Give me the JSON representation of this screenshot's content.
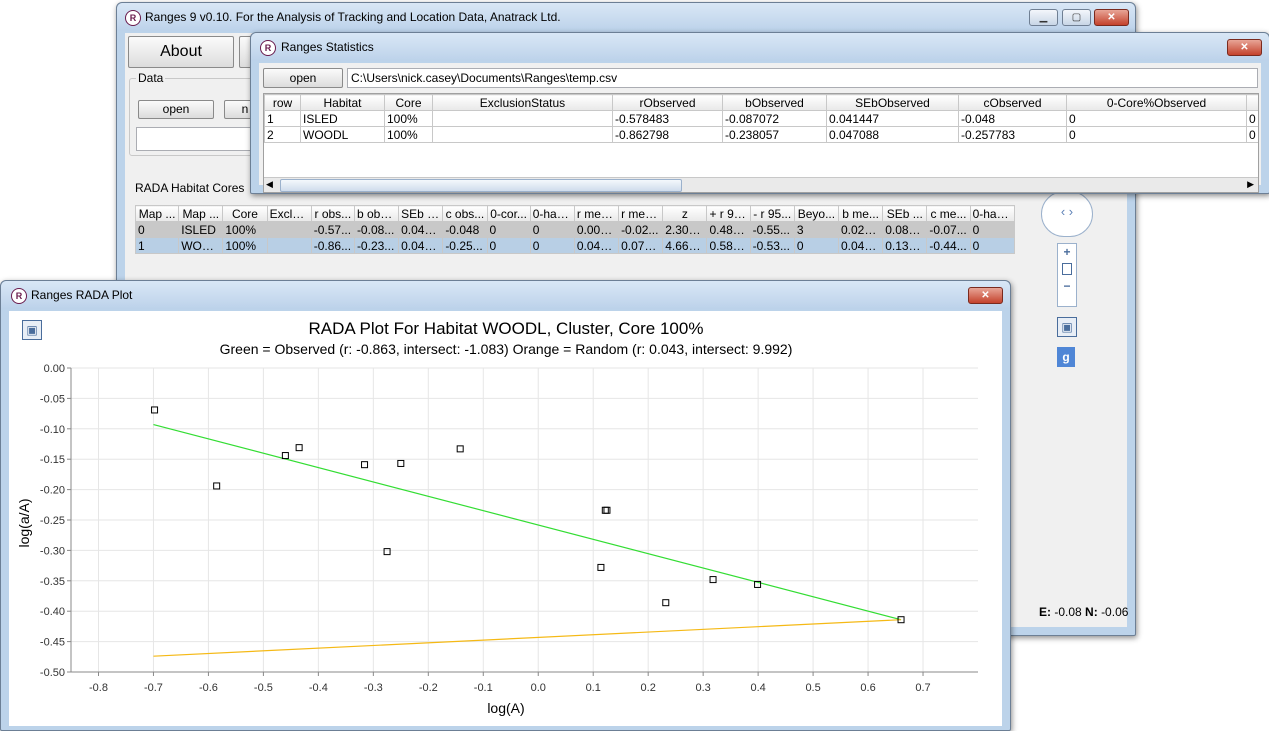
{
  "main_window": {
    "title": "Ranges 9 v0.10. For the Analysis of Tracking and Location Data, Anatrack Ltd.",
    "about_label": "About",
    "data_group_label": "Data",
    "open_label": "open",
    "second_button_label": "n",
    "rada_label": "RADA Habitat Cores",
    "columns": [
      "Map ...",
      "Map ...",
      "Core",
      "Exclu...",
      "r obs...",
      "b obs...",
      "SEb o...",
      "c obs...",
      "0-cor...",
      "0-hab...",
      "r mea...",
      "r med...",
      "z",
      "+ r 95...",
      "- r 95...",
      "Beyo...",
      "b me...",
      "SEb ...",
      "c me...",
      "0-hab..."
    ],
    "rows": [
      [
        "0",
        "ISLED",
        "100%",
        "",
        "-0.57...",
        "-0.08...",
        "0.041...",
        "-0.048",
        "0",
        "0",
        "0.006...",
        "-0.02...",
        "2.304...",
        "0.482...",
        "-0.55...",
        "3",
        "0.021...",
        "0.085...",
        "-0.07...",
        "0"
      ],
      [
        "1",
        "WOO...",
        "100%",
        "",
        "-0.86...",
        "-0.23...",
        "0.047...",
        "-0.25...",
        "0",
        "0",
        "0.043...",
        "0.071...",
        "4.660...",
        "0.589...",
        "-0.53...",
        "0",
        "0.044...",
        "0.130...",
        "-0.44...",
        "0"
      ]
    ],
    "coords_e_label": "E:",
    "coords_e_value": "-0.08",
    "coords_n_label": "N:",
    "coords_n_value": "-0.06",
    "zoom_plus": "+",
    "zoom_minus": "−",
    "google_label": "g"
  },
  "stats_window": {
    "title": "Ranges Statistics",
    "open_label": "open",
    "path": "C:\\Users\\nick.casey\\Documents\\Ranges\\temp.csv",
    "columns": [
      "row",
      "Habitat",
      "Core",
      "ExclusionStatus",
      "rObserved",
      "bObserved",
      "SEbObserved",
      "cObserved",
      "0-Core%Observed",
      ""
    ],
    "rows": [
      [
        "1",
        "ISLED",
        "100%",
        "",
        "-0.578483",
        "-0.087072",
        "0.041447",
        "-0.048",
        "0",
        "0"
      ],
      [
        "2",
        "WOODL",
        "100%",
        "",
        "-0.862798",
        "-0.238057",
        "0.047088",
        "-0.257783",
        "0",
        "0"
      ]
    ]
  },
  "plot_window": {
    "title": "Ranges RADA Plot"
  },
  "app_icon_letter": "R",
  "chart_data": {
    "type": "scatter",
    "title": "RADA Plot For Habitat WOODL, Cluster, Core 100%",
    "subtitle": "Green = Observed (r: -0.863, intersect: -1.083) Orange = Random (r: 0.043, intersect: 9.992)",
    "xlabel": "log(A)",
    "ylabel": "log(a/A)",
    "xlim": [
      -0.85,
      0.8
    ],
    "ylim": [
      -0.5,
      0.0
    ],
    "x_ticks": [
      "-0.8",
      "-0.7",
      "-0.6",
      "-0.5",
      "-0.4",
      "-0.3",
      "-0.2",
      "-0.1",
      "0.0",
      "0.1",
      "0.2",
      "0.3",
      "0.4",
      "0.5",
      "0.6",
      "0.7"
    ],
    "y_ticks": [
      "0.00",
      "-0.05",
      "-0.10",
      "-0.15",
      "-0.20",
      "-0.25",
      "-0.30",
      "-0.35",
      "-0.40",
      "-0.45",
      "-0.50"
    ],
    "grid": true,
    "points": [
      {
        "x": -0.698,
        "y": -0.069
      },
      {
        "x": -0.585,
        "y": -0.194
      },
      {
        "x": -0.46,
        "y": -0.144
      },
      {
        "x": -0.435,
        "y": -0.131
      },
      {
        "x": -0.316,
        "y": -0.159
      },
      {
        "x": -0.275,
        "y": -0.302
      },
      {
        "x": -0.25,
        "y": -0.157
      },
      {
        "x": -0.142,
        "y": -0.133
      },
      {
        "x": 0.122,
        "y": -0.234
      },
      {
        "x": 0.125,
        "y": -0.234
      },
      {
        "x": 0.114,
        "y": -0.328
      },
      {
        "x": 0.232,
        "y": -0.386
      },
      {
        "x": 0.318,
        "y": -0.348
      },
      {
        "x": 0.399,
        "y": -0.356
      },
      {
        "x": 0.66,
        "y": -0.414
      }
    ],
    "series": [
      {
        "name": "Observed",
        "color": "#33dd33",
        "x": [
          -0.7,
          0.66
        ],
        "y": [
          -0.093,
          -0.414
        ]
      },
      {
        "name": "Random",
        "color": "#f5b915",
        "x": [
          -0.7,
          0.66
        ],
        "y": [
          -0.474,
          -0.414
        ]
      }
    ]
  }
}
